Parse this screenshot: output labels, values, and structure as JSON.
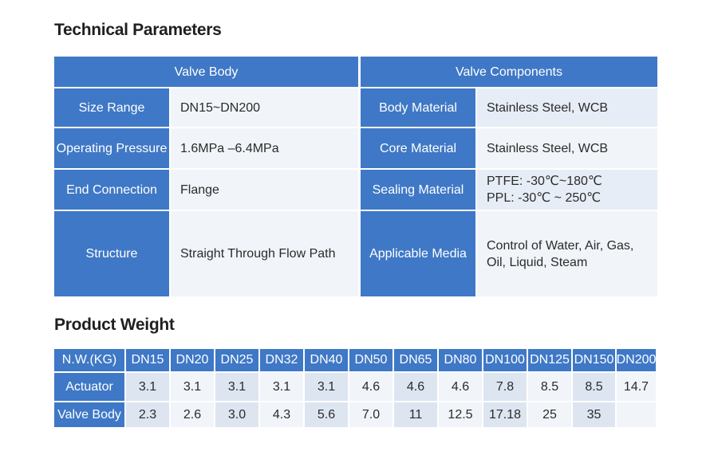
{
  "technical": {
    "heading": "Technical Parameters",
    "valve_body_header": "Valve Body",
    "valve_components_header": "Valve Components",
    "rows": [
      {
        "label": "Size Range",
        "value": "DN15~DN200",
        "comp_label": "Body Material",
        "comp_value": "Stainless Steel, WCB"
      },
      {
        "label": "Operating Pressure",
        "value": "1.6MPa –6.4MPa",
        "comp_label": "Core Material",
        "comp_value": "Stainless Steel, WCB"
      },
      {
        "label": "End Connection",
        "value": "Flange",
        "comp_label": "Sealing Material",
        "comp_value_1": "PTFE: -30℃~180℃",
        "comp_value_2": "PPL:  -30℃ ~ 250℃"
      },
      {
        "label": "Structure",
        "value": "Straight Through Flow Path",
        "comp_label": "Applicable Media",
        "comp_value_1": "Control of Water, Air, Gas,",
        "comp_value_2": "Oil, Liquid, Steam"
      }
    ]
  },
  "weight": {
    "heading": "Product Weight",
    "header_label": "N.W.(KG)",
    "sizes": [
      "DN15",
      "DN20",
      "DN25",
      "DN32",
      "DN40",
      "DN50",
      "DN65",
      "DN80",
      "DN100",
      "DN125",
      "DN150",
      "DN200"
    ],
    "actuator_label": "Actuator",
    "actuator": [
      "3.1",
      "3.1",
      "3.1",
      "3.1",
      "3.1",
      "4.6",
      "4.6",
      "4.6",
      "7.8",
      "8.5",
      "8.5",
      "14.7"
    ],
    "valve_body_label": "Valve Body",
    "valve_body": [
      "2.3",
      "2.6",
      "3.0",
      "4.3",
      "5.6",
      "7.0",
      "11",
      "12.5",
      "17.18",
      "25",
      "35",
      ""
    ]
  },
  "colors": {
    "header_blue": "#3f78c6",
    "light_cell": "#f1f4f9",
    "dark_cell": "#dde5f1"
  }
}
